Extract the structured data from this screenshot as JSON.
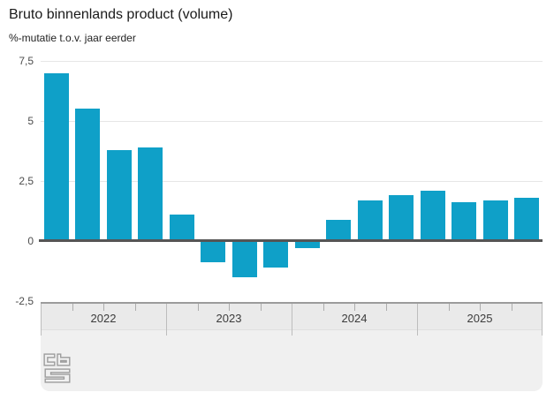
{
  "header": {
    "title": "Bruto binnenlands product (volume)",
    "subtitle": "%-mutatie t.o.v. jaar eerder"
  },
  "chart_data": {
    "type": "bar",
    "title": "Bruto binnenlands product (volume)",
    "subtitle": "%-mutatie t.o.v. jaar eerder",
    "unit": "%",
    "categories": [
      "2022 Q1",
      "2022 Q2",
      "2022 Q3",
      "2022 Q4",
      "2023 Q1",
      "2023 Q2",
      "2023 Q3",
      "2023 Q4",
      "2024 Q1",
      "2024 Q2",
      "2024 Q3",
      "2024 Q4",
      "2025 Q1",
      "2025 Q2",
      "2025 Q3",
      "2025 Q4"
    ],
    "values": [
      7.0,
      5.5,
      3.8,
      3.9,
      1.1,
      -0.9,
      -1.5,
      -1.1,
      -0.3,
      0.9,
      1.7,
      1.9,
      2.1,
      1.6,
      1.7,
      1.8
    ],
    "x_axis_years": [
      "2022",
      "2023",
      "2024",
      "2025"
    ],
    "quarters_per_year": 4,
    "xlabel": "",
    "ylabel": "%-mutatie t.o.v. jaar eerder",
    "ylim": [
      -2.5,
      7.5
    ],
    "ytick_values": [
      7.5,
      5,
      2.5,
      0,
      -2.5
    ],
    "ytick_labels": [
      "7,5",
      "5",
      "2,5",
      "0",
      "-2,5"
    ],
    "grid": true,
    "legend": false
  },
  "colors": {
    "bar": "#0fa0c8",
    "axis_line": "#555555",
    "gridline": "#e6e6e6",
    "navigator_fill": "#f0f0f0",
    "logo": "#9b9b9b"
  },
  "footer": {
    "logo_name": "cbs-logo"
  }
}
